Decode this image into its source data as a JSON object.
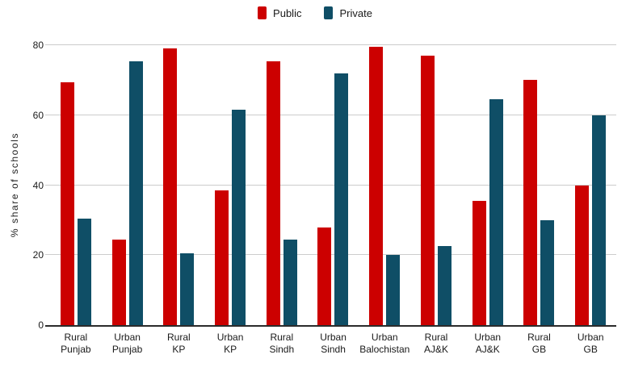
{
  "chart_data": {
    "type": "bar",
    "title": "",
    "xlabel": "",
    "ylabel": "% share of schools",
    "ylim": [
      0,
      80
    ],
    "yticks": [
      0,
      20,
      40,
      60,
      80
    ],
    "grid": true,
    "legend_position": "top-center",
    "categories": [
      "Rural Punjab",
      "Urban Punjab",
      "Rural KP",
      "Urban KP",
      "Rural Sindh",
      "Urban Sindh",
      "Urban Balochistan",
      "Rural AJ&K",
      "Urban AJ&K",
      "Rural GB",
      "Urban GB"
    ],
    "series": [
      {
        "name": "Public",
        "color": "#cc0000",
        "values": [
          69.5,
          24.5,
          79,
          38.5,
          75.5,
          28,
          79.5,
          77,
          35.5,
          70,
          40
        ]
      },
      {
        "name": "Private",
        "color": "#0f4e66",
        "values": [
          30.5,
          75.5,
          20.5,
          61.5,
          24.5,
          72,
          20,
          22.5,
          64.5,
          30,
          60
        ]
      }
    ]
  },
  "legend": {
    "items": [
      {
        "label": "Public",
        "color": "#cc0000"
      },
      {
        "label": "Private",
        "color": "#0f4e66"
      }
    ]
  },
  "colors": {
    "background": "#ffffff",
    "gridline": "#cccccc",
    "axis": "#2b2b2b",
    "text": "#1a1a1a"
  }
}
